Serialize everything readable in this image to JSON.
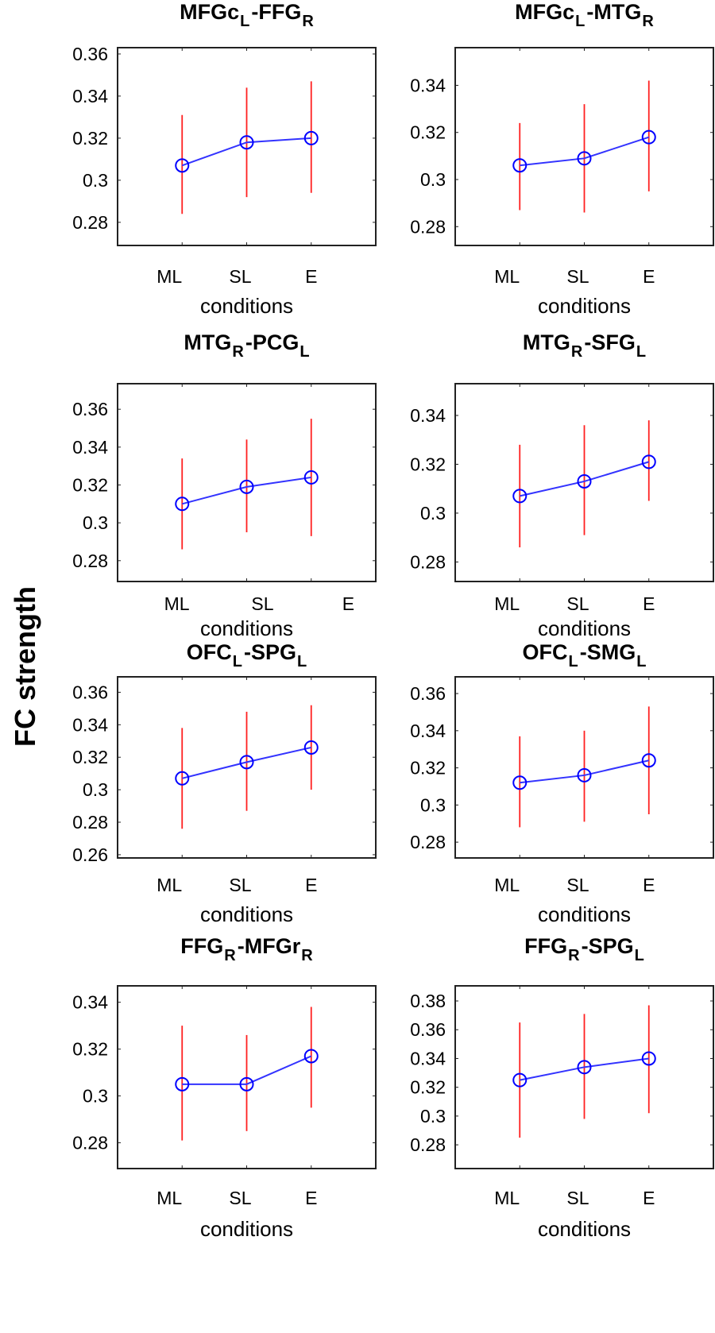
{
  "chart_data": {
    "type": "line",
    "ylabel": "FC strength",
    "colors": {
      "line": "#3333ff",
      "marker": "#0000ff",
      "errorbar": "#ff2020",
      "axes": "#222222"
    },
    "categories": [
      "ML",
      "SL",
      "E"
    ],
    "xlabel": "conditions",
    "panels": [
      {
        "title": "MFGc",
        "title_sub1": "L",
        "title_mid": "-FFG",
        "title_sub2": "R",
        "ylim": [
          0.269,
          0.363
        ],
        "yticks": [
          "0.28",
          "0.3",
          "0.32",
          "0.34",
          "0.36"
        ],
        "values": [
          0.307,
          0.318,
          0.32
        ],
        "lower": [
          0.284,
          0.292,
          0.294
        ],
        "upper": [
          0.331,
          0.344,
          0.347
        ]
      },
      {
        "title": "MFGc",
        "title_sub1": "L",
        "title_mid": "-MTG",
        "title_sub2": "R",
        "ylim": [
          0.272,
          0.356
        ],
        "yticks": [
          "0.28",
          "0.3",
          "0.32",
          "0.34"
        ],
        "values": [
          0.306,
          0.309,
          0.318
        ],
        "lower": [
          0.287,
          0.286,
          0.295
        ],
        "upper": [
          0.324,
          0.332,
          0.342
        ]
      },
      {
        "title": "MTG",
        "title_sub1": "R",
        "title_mid": "-PCG",
        "title_sub2": "L",
        "ylim": [
          0.269,
          0.3735
        ],
        "yticks": [
          "0.28",
          "0.3",
          "0.32",
          "0.34",
          "0.36"
        ],
        "values": [
          0.31,
          0.319,
          0.324
        ],
        "lower": [
          0.286,
          0.295,
          0.293
        ],
        "upper": [
          0.334,
          0.344,
          0.355
        ]
      },
      {
        "title": "MTG",
        "title_sub1": "R",
        "title_mid": "-SFG",
        "title_sub2": "L",
        "ylim": [
          0.272,
          0.353
        ],
        "yticks": [
          "0.28",
          "0.3",
          "0.32",
          "0.34"
        ],
        "values": [
          0.307,
          0.313,
          0.321
        ],
        "lower": [
          0.286,
          0.291,
          0.305
        ],
        "upper": [
          0.328,
          0.336,
          0.338
        ]
      },
      {
        "title": "OFC",
        "title_sub1": "L",
        "title_mid": "-SPG",
        "title_sub2": "L",
        "ylim": [
          0.258,
          0.3695
        ],
        "yticks": [
          "0.26",
          "0.28",
          "0.3",
          "0.32",
          "0.34",
          "0.36"
        ],
        "values": [
          0.307,
          0.317,
          0.326
        ],
        "lower": [
          0.276,
          0.287,
          0.3
        ],
        "upper": [
          0.338,
          0.348,
          0.352
        ]
      },
      {
        "title": "OFC",
        "title_sub1": "L",
        "title_mid": "-SMG",
        "title_sub2": "L",
        "ylim": [
          0.2715,
          0.369
        ],
        "yticks": [
          "0.28",
          "0.3",
          "0.32",
          "0.34",
          "0.36"
        ],
        "values": [
          0.312,
          0.316,
          0.324
        ],
        "lower": [
          0.288,
          0.291,
          0.295
        ],
        "upper": [
          0.337,
          0.34,
          0.353
        ]
      },
      {
        "title": "FFG",
        "title_sub1": "R",
        "title_mid": "-MFGr",
        "title_sub2": "R",
        "ylim": [
          0.269,
          0.347
        ],
        "yticks": [
          "0.28",
          "0.3",
          "0.32",
          "0.34"
        ],
        "values": [
          0.305,
          0.305,
          0.317
        ],
        "lower": [
          0.281,
          0.285,
          0.295
        ],
        "upper": [
          0.33,
          0.326,
          0.338
        ]
      },
      {
        "title": "FFG",
        "title_sub1": "R",
        "title_mid": "-SPG",
        "title_sub2": "L",
        "ylim": [
          0.2635,
          0.3905
        ],
        "yticks": [
          "0.28",
          "0.3",
          "0.32",
          "0.34",
          "0.36",
          "0.38"
        ],
        "values": [
          0.325,
          0.334,
          0.34
        ],
        "lower": [
          0.285,
          0.298,
          0.302
        ],
        "upper": [
          0.365,
          0.371,
          0.377
        ]
      }
    ]
  }
}
